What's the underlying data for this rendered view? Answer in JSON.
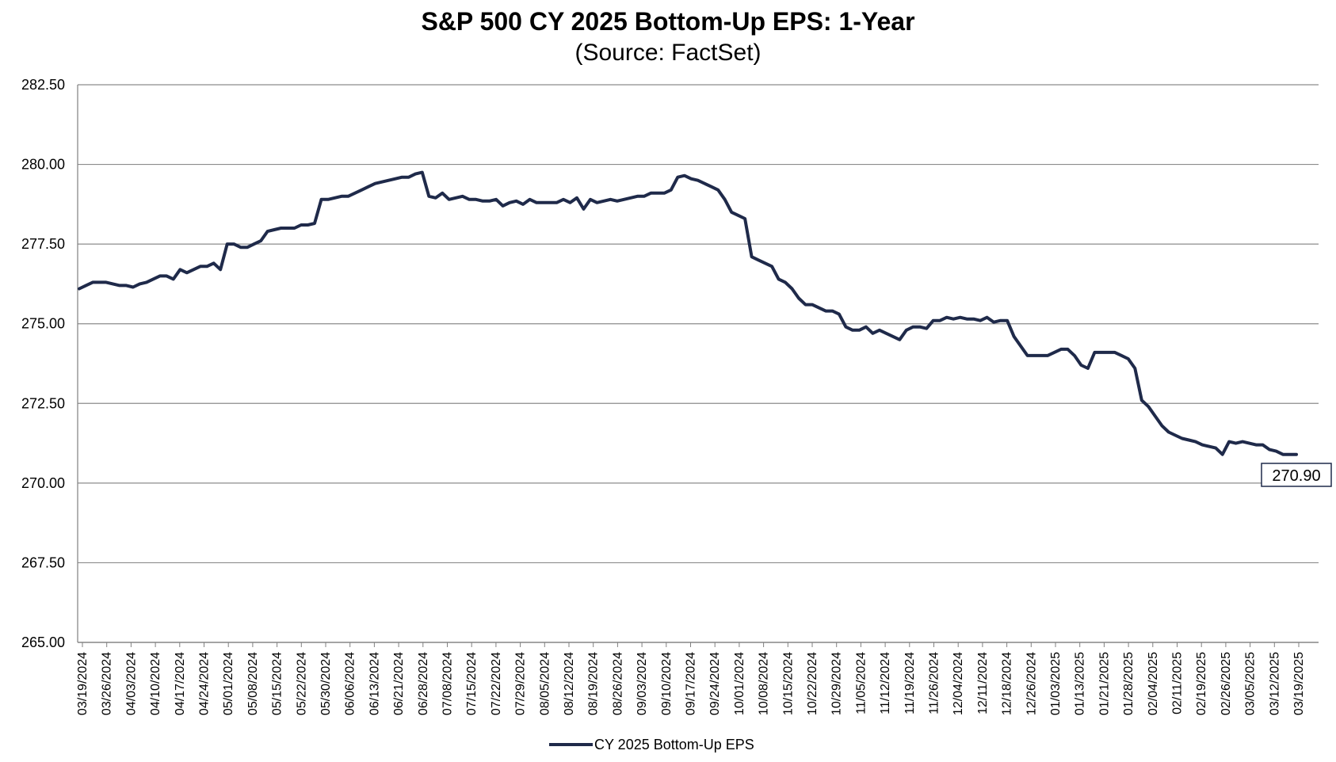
{
  "chart_data": {
    "type": "line",
    "title": "S&P 500 CY 2025 Bottom-Up  EPS: 1-Year",
    "subtitle": "(Source: FactSet)",
    "xlabel": "",
    "ylabel": "",
    "ylim": [
      265.0,
      282.5
    ],
    "ytick_labels": [
      "265.00",
      "267.50",
      "270.00",
      "272.50",
      "275.00",
      "277.50",
      "280.00",
      "282.50"
    ],
    "xtick_labels": [
      "03/19/2024",
      "03/26/2024",
      "04/03/2024",
      "04/10/2024",
      "04/17/2024",
      "04/24/2024",
      "05/01/2024",
      "05/08/2024",
      "05/15/2024",
      "05/22/2024",
      "05/30/2024",
      "06/06/2024",
      "06/13/2024",
      "06/21/2024",
      "06/28/2024",
      "07/08/2024",
      "07/15/2024",
      "07/22/2024",
      "07/29/2024",
      "08/05/2024",
      "08/12/2024",
      "08/19/2024",
      "08/26/2024",
      "09/03/2024",
      "09/10/2024",
      "09/17/2024",
      "09/24/2024",
      "10/01/2024",
      "10/08/2024",
      "10/15/2024",
      "10/22/2024",
      "10/29/2024",
      "11/05/2024",
      "11/12/2024",
      "11/19/2024",
      "11/26/2024",
      "12/04/2024",
      "12/11/2024",
      "12/18/2024",
      "12/26/2024",
      "01/03/2025",
      "01/13/2025",
      "01/21/2025",
      "01/28/2025",
      "02/04/2025",
      "02/11/2025",
      "02/19/2025",
      "02/26/2025",
      "03/05/2025",
      "03/12/2025",
      "03/19/2025"
    ],
    "grid": true,
    "legend_position": "bottom",
    "color": "#1f2a4a",
    "series": [
      {
        "name": "CY 2025 Bottom-Up EPS",
        "values": [
          276.1,
          276.2,
          276.3,
          276.3,
          276.3,
          276.25,
          276.2,
          276.2,
          276.15,
          276.25,
          276.3,
          276.4,
          276.5,
          276.5,
          276.4,
          276.7,
          276.6,
          276.7,
          276.8,
          276.8,
          276.9,
          276.7,
          277.5,
          277.5,
          277.4,
          277.4,
          277.5,
          277.6,
          277.9,
          277.95,
          278.0,
          278.0,
          278.0,
          278.1,
          278.1,
          278.15,
          278.9,
          278.9,
          278.95,
          279.0,
          279.0,
          279.1,
          279.2,
          279.3,
          279.4,
          279.45,
          279.5,
          279.55,
          279.6,
          279.6,
          279.7,
          279.75,
          279.0,
          278.95,
          279.1,
          278.9,
          278.95,
          279.0,
          278.9,
          278.9,
          278.85,
          278.85,
          278.9,
          278.7,
          278.8,
          278.85,
          278.75,
          278.9,
          278.8,
          278.8,
          278.8,
          278.8,
          278.9,
          278.8,
          278.95,
          278.6,
          278.9,
          278.8,
          278.85,
          278.9,
          278.85,
          278.9,
          278.95,
          279.0,
          279.0,
          279.1,
          279.1,
          279.1,
          279.2,
          279.6,
          279.65,
          279.55,
          279.5,
          279.4,
          279.3,
          279.2,
          278.9,
          278.5,
          278.4,
          278.3,
          277.1,
          277.0,
          276.9,
          276.8,
          276.4,
          276.3,
          276.1,
          275.8,
          275.6,
          275.6,
          275.5,
          275.4,
          275.4,
          275.3,
          274.9,
          274.8,
          274.8,
          274.9,
          274.7,
          274.8,
          274.7,
          274.6,
          274.5,
          274.8,
          274.9,
          274.9,
          274.85,
          275.1,
          275.1,
          275.2,
          275.15,
          275.2,
          275.15,
          275.15,
          275.1,
          275.2,
          275.05,
          275.1,
          275.1,
          274.6,
          274.3,
          274.0,
          274.0,
          274.0,
          274.0,
          274.1,
          274.2,
          274.2,
          274.0,
          273.7,
          273.6,
          274.1,
          274.1,
          274.1,
          274.1,
          274.0,
          273.9,
          273.6,
          272.6,
          272.4,
          272.1,
          271.8,
          271.6,
          271.5,
          271.4,
          271.35,
          271.3,
          271.2,
          271.15,
          271.1,
          270.9,
          271.3,
          271.25,
          271.3,
          271.25,
          271.2,
          271.2,
          271.05,
          271.0,
          270.9,
          270.9,
          270.9
        ]
      }
    ],
    "last_value_label": "270.90"
  }
}
